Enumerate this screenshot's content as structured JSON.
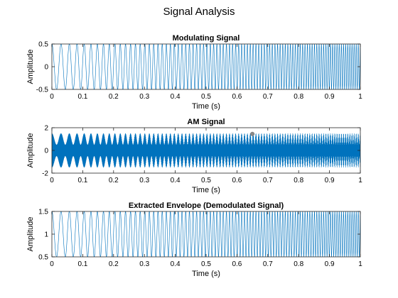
{
  "figure": {
    "title": "Signal Analysis"
  },
  "colors": {
    "line": "#0072BD",
    "marker": "#8a8a8a",
    "axes": "#262626"
  },
  "chart_data": [
    {
      "type": "line",
      "title": "Modulating Signal",
      "xlabel": "Time (s)",
      "ylabel": "Amplitude",
      "xlim": [
        0,
        1
      ],
      "ylim": [
        -0.5,
        0.5
      ],
      "xticks": [
        0,
        0.1,
        0.2,
        0.3,
        0.4,
        0.5,
        0.6,
        0.7,
        0.8,
        0.9,
        1
      ],
      "xticklabels": [
        "0",
        "0.1",
        "0.2",
        "0.3",
        "0.4",
        "0.5",
        "0.6",
        "0.7",
        "0.8",
        "0.9",
        "1"
      ],
      "yticks": [
        -0.5,
        0,
        0.5
      ],
      "yticklabels": [
        "-0.5",
        "0",
        "0.5"
      ],
      "grid": false,
      "signal": {
        "offset": 0,
        "amplitude": 0.5,
        "carrier_amplitude": 0,
        "chirp_f0_hz": 32,
        "chirp_f1_hz": 150
      }
    },
    {
      "type": "line",
      "title": "AM Signal",
      "xlabel": "Time (s)",
      "ylabel": "Amplitude",
      "xlim": [
        0,
        1
      ],
      "ylim": [
        -2,
        2
      ],
      "xticks": [
        0,
        0.1,
        0.2,
        0.3,
        0.4,
        0.5,
        0.6,
        0.7,
        0.8,
        0.9,
        1
      ],
      "xticklabels": [
        "0",
        "0.1",
        "0.2",
        "0.3",
        "0.4",
        "0.5",
        "0.6",
        "0.7",
        "0.8",
        "0.9",
        "1"
      ],
      "yticks": [
        -2,
        0,
        2
      ],
      "yticklabels": [
        "-2",
        "0",
        "2"
      ],
      "grid": false,
      "signal": {
        "offset": 0,
        "amplitude": 0.5,
        "carrier_amplitude": 1,
        "chirp_f0_hz": 32,
        "chirp_f1_hz": 150
      },
      "marker_point": {
        "x": 0.65,
        "y": 1.45
      }
    },
    {
      "type": "line",
      "title": "Extracted Envelope (Demodulated Signal)",
      "xlabel": "Time (s)",
      "ylabel": "Amplitude",
      "xlim": [
        0,
        1
      ],
      "ylim": [
        0.5,
        1.5
      ],
      "xticks": [
        0,
        0.1,
        0.2,
        0.3,
        0.4,
        0.5,
        0.6,
        0.7,
        0.8,
        0.9,
        1
      ],
      "xticklabels": [
        "0",
        "0.1",
        "0.2",
        "0.3",
        "0.4",
        "0.5",
        "0.6",
        "0.7",
        "0.8",
        "0.9",
        "1"
      ],
      "yticks": [
        0.5,
        1,
        1.5
      ],
      "yticklabels": [
        "0.5",
        "1",
        "1.5"
      ],
      "grid": false,
      "signal": {
        "offset": 1,
        "amplitude": 0.5,
        "carrier_amplitude": 0,
        "chirp_f0_hz": 32,
        "chirp_f1_hz": 150
      }
    }
  ]
}
